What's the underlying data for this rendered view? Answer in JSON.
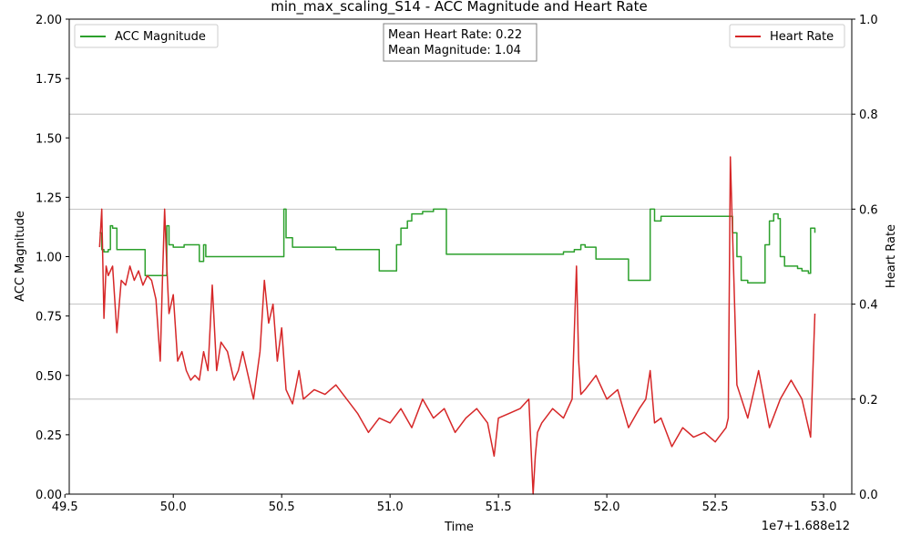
{
  "chart_data": {
    "type": "line",
    "title": "min_max_scaling_S14 - ACC Magnitude and Heart Rate",
    "xlabel": "Time",
    "x_offset_label": "1e7+1.688e12",
    "ylabel_left": "ACC Magnitude",
    "ylabel_right": "Heart Rate",
    "xlim": [
      49.52,
      53.13
    ],
    "ylim_left": [
      0,
      2
    ],
    "ylim_right": [
      0,
      1
    ],
    "x_ticks": [
      49.5,
      50.0,
      50.5,
      51.0,
      51.5,
      52.0,
      52.5,
      53.0
    ],
    "x_tick_labels": [
      "49.5",
      "50.0",
      "50.5",
      "51.0",
      "51.5",
      "52.0",
      "52.5",
      "53.0"
    ],
    "y_left_ticks": [
      0,
      0.25,
      0.5,
      0.75,
      1.0,
      1.25,
      1.5,
      1.75,
      2.0
    ],
    "y_left_tick_labels": [
      "0.00",
      "0.25",
      "0.50",
      "0.75",
      "1.00",
      "1.25",
      "1.50",
      "1.75",
      "2.00"
    ],
    "y_right_ticks": [
      0,
      0.2,
      0.4,
      0.6,
      0.8,
      1.0
    ],
    "y_right_tick_labels": [
      "0.0",
      "0.2",
      "0.4",
      "0.6",
      "0.8",
      "1.0"
    ],
    "grid": "horizontal lines at right-axis ticks",
    "legend_left": {
      "label": "ACC Magnitude",
      "placement": "upper-left"
    },
    "legend_right": {
      "label": "Heart Rate",
      "placement": "upper-right"
    },
    "annotation": [
      "Mean Heart Rate: 0.22",
      "Mean Magnitude: 1.04"
    ],
    "colors": {
      "acc": "#2ca02c",
      "hr": "#d62728"
    },
    "series": [
      {
        "name": "ACC Magnitude",
        "axis": "left",
        "color": "#2ca02c",
        "x": [
          49.66,
          49.67,
          49.68,
          49.7,
          49.71,
          49.72,
          49.74,
          49.8,
          49.86,
          49.87,
          49.91,
          49.95,
          49.97,
          49.98,
          50.0,
          50.05,
          50.1,
          50.12,
          50.14,
          50.15,
          50.2,
          50.25,
          50.3,
          50.4,
          50.49,
          50.51,
          50.52,
          50.55,
          50.6,
          50.7,
          50.75,
          50.8,
          50.9,
          50.95,
          51.0,
          51.03,
          51.05,
          51.08,
          51.1,
          51.15,
          51.2,
          51.24,
          51.26,
          51.3,
          51.4,
          51.5,
          51.6,
          51.7,
          51.8,
          51.85,
          51.88,
          51.9,
          51.95,
          52.0,
          52.04,
          52.1,
          52.15,
          52.19,
          52.2,
          52.22,
          52.25,
          52.3,
          52.4,
          52.5,
          52.57,
          52.58,
          52.6,
          52.62,
          52.65,
          52.7,
          52.73,
          52.75,
          52.77,
          52.79,
          52.8,
          52.82,
          52.85,
          52.88,
          52.9,
          52.93,
          52.94,
          52.96
        ],
        "values": [
          1.1,
          1.03,
          1.02,
          1.03,
          1.13,
          1.12,
          1.03,
          1.03,
          1.03,
          0.92,
          0.92,
          0.92,
          1.13,
          1.05,
          1.04,
          1.05,
          1.05,
          0.98,
          1.05,
          1.0,
          1.0,
          1.0,
          1.0,
          1.0,
          1.0,
          1.2,
          1.08,
          1.04,
          1.04,
          1.04,
          1.03,
          1.03,
          1.03,
          0.94,
          0.94,
          1.05,
          1.12,
          1.15,
          1.18,
          1.19,
          1.2,
          1.2,
          1.01,
          1.01,
          1.01,
          1.01,
          1.01,
          1.01,
          1.02,
          1.03,
          1.05,
          1.04,
          0.99,
          0.99,
          0.99,
          0.9,
          0.9,
          0.9,
          1.2,
          1.15,
          1.17,
          1.17,
          1.17,
          1.17,
          1.17,
          1.1,
          1.0,
          0.9,
          0.89,
          0.89,
          1.05,
          1.15,
          1.18,
          1.16,
          1.0,
          0.96,
          0.96,
          0.95,
          0.94,
          0.93,
          1.12,
          1.1
        ]
      },
      {
        "name": "Heart Rate",
        "axis": "right",
        "color": "#d62728",
        "x": [
          49.66,
          49.67,
          49.68,
          49.69,
          49.7,
          49.72,
          49.74,
          49.76,
          49.78,
          49.8,
          49.82,
          49.84,
          49.86,
          49.88,
          49.9,
          49.92,
          49.94,
          49.95,
          49.96,
          49.97,
          49.98,
          50.0,
          50.02,
          50.04,
          50.06,
          50.08,
          50.1,
          50.12,
          50.14,
          50.16,
          50.18,
          50.2,
          50.22,
          50.25,
          50.28,
          50.3,
          50.32,
          50.35,
          50.37,
          50.4,
          50.42,
          50.44,
          50.46,
          50.48,
          50.5,
          50.52,
          50.55,
          50.58,
          50.6,
          50.65,
          50.7,
          50.75,
          50.8,
          50.85,
          50.9,
          50.95,
          51.0,
          51.05,
          51.1,
          51.15,
          51.2,
          51.25,
          51.3,
          51.35,
          51.4,
          51.45,
          51.48,
          51.5,
          51.55,
          51.6,
          51.64,
          51.66,
          51.67,
          51.68,
          51.7,
          51.75,
          51.8,
          51.84,
          51.86,
          51.87,
          51.88,
          51.9,
          51.95,
          52.0,
          52.05,
          52.1,
          52.15,
          52.18,
          52.2,
          52.22,
          52.25,
          52.3,
          52.35,
          52.4,
          52.45,
          52.5,
          52.55,
          52.56,
          52.57,
          52.58,
          52.6,
          52.65,
          52.7,
          52.75,
          52.8,
          52.85,
          52.9,
          52.94,
          52.96
        ],
        "values": [
          0.52,
          0.6,
          0.37,
          0.48,
          0.46,
          0.48,
          0.34,
          0.45,
          0.44,
          0.48,
          0.45,
          0.47,
          0.44,
          0.46,
          0.45,
          0.41,
          0.28,
          0.45,
          0.6,
          0.48,
          0.38,
          0.42,
          0.28,
          0.3,
          0.26,
          0.24,
          0.25,
          0.24,
          0.3,
          0.26,
          0.44,
          0.26,
          0.32,
          0.3,
          0.24,
          0.26,
          0.3,
          0.24,
          0.2,
          0.3,
          0.45,
          0.36,
          0.4,
          0.28,
          0.35,
          0.22,
          0.19,
          0.26,
          0.2,
          0.22,
          0.21,
          0.23,
          0.2,
          0.17,
          0.13,
          0.16,
          0.15,
          0.18,
          0.14,
          0.2,
          0.16,
          0.18,
          0.13,
          0.16,
          0.18,
          0.15,
          0.08,
          0.16,
          0.17,
          0.18,
          0.2,
          0.0,
          0.08,
          0.13,
          0.15,
          0.18,
          0.16,
          0.2,
          0.48,
          0.28,
          0.21,
          0.22,
          0.25,
          0.2,
          0.22,
          0.14,
          0.18,
          0.2,
          0.26,
          0.15,
          0.16,
          0.1,
          0.14,
          0.12,
          0.13,
          0.11,
          0.14,
          0.16,
          0.71,
          0.55,
          0.23,
          0.16,
          0.26,
          0.14,
          0.2,
          0.24,
          0.2,
          0.12,
          0.38
        ]
      }
    ]
  }
}
